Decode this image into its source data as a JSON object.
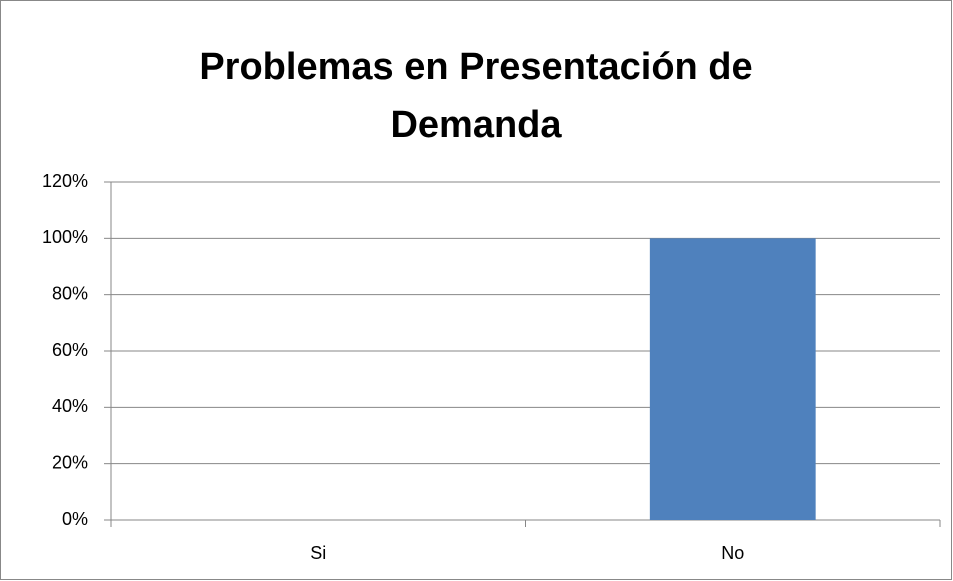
{
  "chart_data": {
    "type": "bar",
    "title": "Problemas en Presentación de Demanda",
    "categories": [
      "Si",
      "No"
    ],
    "values": [
      0,
      100
    ],
    "color": "#4f81bd",
    "ylim": [
      0,
      120
    ],
    "yticks": [
      {
        "value": 0,
        "label": "0%"
      },
      {
        "value": 20,
        "label": "20%"
      },
      {
        "value": 40,
        "label": "40%"
      },
      {
        "value": 60,
        "label": "60%"
      },
      {
        "value": 80,
        "label": "80%"
      },
      {
        "value": 100,
        "label": "100%"
      },
      {
        "value": 120,
        "label": "120%"
      }
    ],
    "grid": true
  }
}
